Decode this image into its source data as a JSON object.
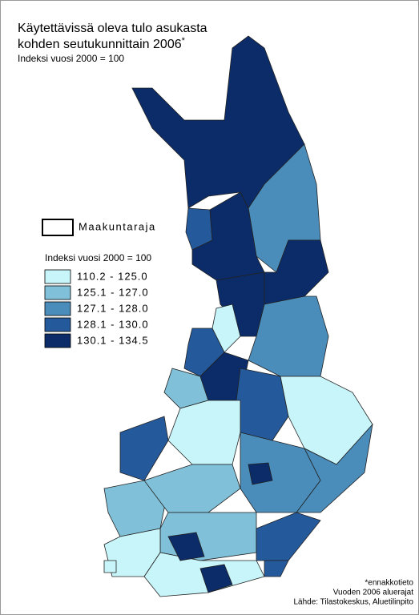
{
  "title": "Käytettävissä oleva tulo asukasta",
  "title_line2": "kohden seutukunnittain 2006",
  "title_mark": "*",
  "subtitle": "Indeksi vuosi 2000 = 100",
  "legend": {
    "border_label": "Maakuntaraja",
    "title": "Indeksi vuosi 2000 = 100",
    "classes": [
      {
        "label": "110.2 - 125.0",
        "color": "#c8f5fa"
      },
      {
        "label": "125.1 - 127.0",
        "color": "#80c0d8"
      },
      {
        "label": "127.1 - 128.0",
        "color": "#4a8cba"
      },
      {
        "label": "128.1 - 130.0",
        "color": "#24599c"
      },
      {
        "label": "130.1 - 134.5",
        "color": "#0b2c68"
      }
    ]
  },
  "footnotes": [
    "*ennakkotieto",
    "Vuoden 2006 aluerajat",
    "Lähde: Tilastokeskus, Aluetilinpito"
  ]
}
